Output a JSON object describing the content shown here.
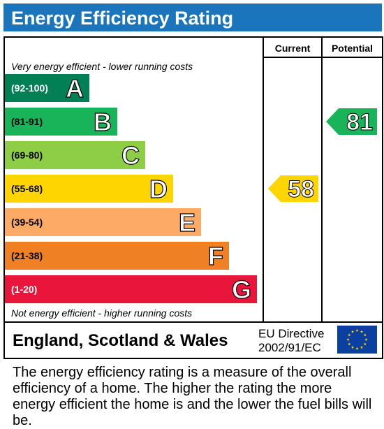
{
  "title": "Energy Efficiency Rating",
  "columns": {
    "current": "Current",
    "potential": "Potential"
  },
  "top_note": "Very energy efficient - lower running costs",
  "bottom_note": "Not energy efficient - higher running costs",
  "footer": {
    "country": "England, Scotland & Wales",
    "directive_line1": "EU Directive",
    "directive_line2": "2002/91/EC"
  },
  "description": "The energy efficiency rating is a measure of the overall efficiency of a home. The higher the rating the more energy efficient the home is and the lower the fuel bills will be.",
  "colors": {
    "title_bar": "#1a75bc",
    "band_A": "#008054",
    "band_B": "#19b459",
    "band_C": "#8dce46",
    "band_D": "#ffd500",
    "band_E": "#fcaa65",
    "band_F": "#ef8023",
    "band_G": "#e9153b",
    "eu_flag": "#0b3fa0",
    "eu_stars": "#ffdd00"
  },
  "chart_data": {
    "type": "bar",
    "title": "Energy Efficiency Rating",
    "bands": [
      {
        "range": "(92-100)",
        "letter": "A",
        "min": 92,
        "max": 100
      },
      {
        "range": "(81-91)",
        "letter": "B",
        "min": 81,
        "max": 91
      },
      {
        "range": "(69-80)",
        "letter": "C",
        "min": 69,
        "max": 80
      },
      {
        "range": "(55-68)",
        "letter": "D",
        "min": 55,
        "max": 68
      },
      {
        "range": "(39-54)",
        "letter": "E",
        "min": 39,
        "max": 54
      },
      {
        "range": "(21-38)",
        "letter": "F",
        "min": 21,
        "max": 38
      },
      {
        "range": "(1-20)",
        "letter": "G",
        "min": 1,
        "max": 20
      }
    ],
    "current": {
      "value": 58,
      "band": "D"
    },
    "potential": {
      "value": 81,
      "band": "B"
    }
  }
}
